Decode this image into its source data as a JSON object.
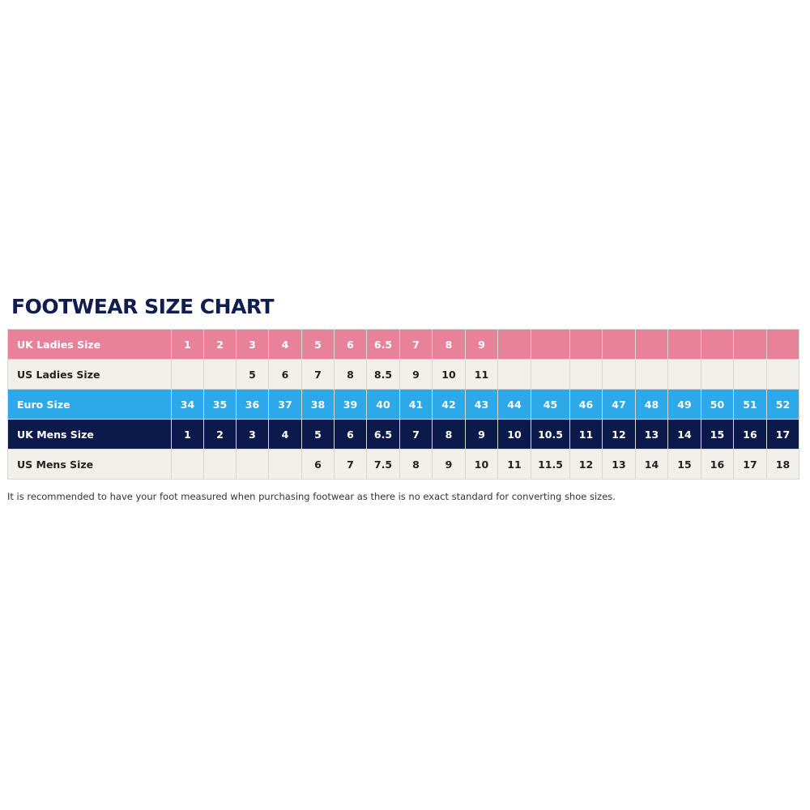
{
  "title": "FOOTWEAR SIZE CHART",
  "colors": {
    "uk_ladies": "#e8829a",
    "euro": "#2da8e8",
    "uk_mens": "#0c1a4b",
    "light_row": "#f1f0eb",
    "title": "#101d4e"
  },
  "rows": [
    {
      "label": "UK Ladies Size",
      "values": [
        "1",
        "2",
        "3",
        "4",
        "5",
        "6",
        "6.5",
        "7",
        "8",
        "9",
        "",
        "",
        "",
        "",
        "",
        "",
        "",
        "",
        ""
      ]
    },
    {
      "label": "US Ladies Size",
      "values": [
        "",
        "",
        "5",
        "6",
        "7",
        "8",
        "8.5",
        "9",
        "10",
        "11",
        "",
        "",
        "",
        "",
        "",
        "",
        "",
        "",
        ""
      ]
    },
    {
      "label": "Euro Size",
      "values": [
        "34",
        "35",
        "36",
        "37",
        "38",
        "39",
        "40",
        "41",
        "42",
        "43",
        "44",
        "45",
        "46",
        "47",
        "48",
        "49",
        "50",
        "51",
        "52"
      ]
    },
    {
      "label": "UK Mens Size",
      "values": [
        "1",
        "2",
        "3",
        "4",
        "5",
        "6",
        "6.5",
        "7",
        "8",
        "9",
        "10",
        "10.5",
        "11",
        "12",
        "13",
        "14",
        "15",
        "16",
        "17"
      ]
    },
    {
      "label": "US Mens Size",
      "values": [
        "",
        "",
        "",
        "",
        "6",
        "7",
        "7.5",
        "8",
        "9",
        "10",
        "11",
        "11.5",
        "12",
        "13",
        "14",
        "15",
        "16",
        "17",
        "18"
      ]
    }
  ],
  "note": "It is recommended to have your foot measured when purchasing footwear as there is no exact standard for converting shoe sizes."
}
